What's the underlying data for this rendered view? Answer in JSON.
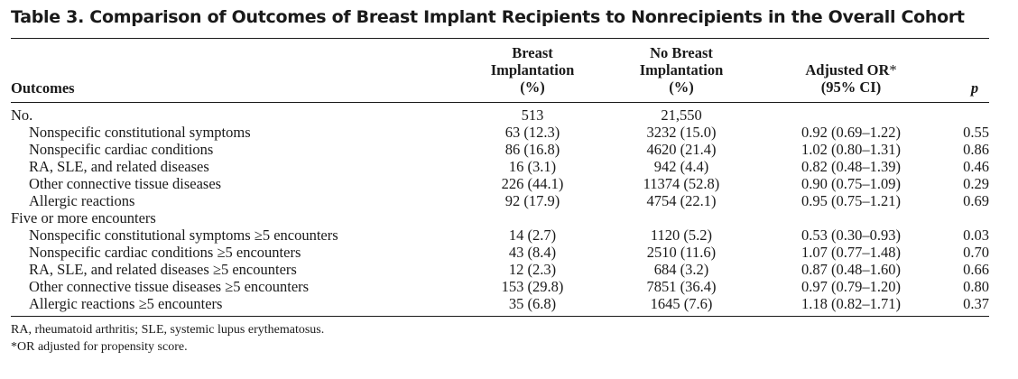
{
  "title": "Table 3.  Comparison of Outcomes of Breast Implant Recipients to Nonrecipients in the Overall Cohort",
  "headers": {
    "outcomes": "Outcomes",
    "breast_implantation": [
      "Breast",
      "Implantation",
      "(%)"
    ],
    "no_breast_implantation": [
      "No Breast",
      "Implantation",
      "(%)"
    ],
    "adjusted_or": [
      "Adjusted OR",
      "*",
      "(95% CI)"
    ],
    "p": "p"
  },
  "rows": [
    {
      "label": "No.",
      "bi": "513",
      "nbi": "21,550",
      "or": "",
      "p": ""
    },
    {
      "label": "Nonspecific constitutional symptoms",
      "bi": "63 (12.3)",
      "nbi": "3232 (15.0)",
      "or": "0.92 (0.69–1.22)",
      "p": "0.55"
    },
    {
      "label": "Nonspecific cardiac conditions",
      "bi": "86 (16.8)",
      "nbi": "4620 (21.4)",
      "or": "1.02 (0.80–1.31)",
      "p": "0.86"
    },
    {
      "label": "RA, SLE, and related diseases",
      "bi": "16 (3.1)",
      "nbi": "942 (4.4)",
      "or": "0.82 (0.48–1.39)",
      "p": "0.46"
    },
    {
      "label": "Other connective tissue diseases",
      "bi": "226 (44.1)",
      "nbi": "11374 (52.8)",
      "or": "0.90 (0.75–1.09)",
      "p": "0.29"
    },
    {
      "label": "Allergic reactions",
      "bi": "92 (17.9)",
      "nbi": "4754 (22.1)",
      "or": "0.95 (0.75–1.21)",
      "p": "0.69"
    },
    {
      "label": "Five or more encounters",
      "bi": "",
      "nbi": "",
      "or": "",
      "p": ""
    },
    {
      "label": "Nonspecific constitutional symptoms ≥5 encounters",
      "bi": "14 (2.7)",
      "nbi": "1120 (5.2)",
      "or": "0.53 (0.30–0.93)",
      "p": "0.03"
    },
    {
      "label": "Nonspecific cardiac conditions ≥5 encounters",
      "bi": "43 (8.4)",
      "nbi": "2510 (11.6)",
      "or": "1.07 (0.77–1.48)",
      "p": "0.70"
    },
    {
      "label": "RA, SLE, and related diseases ≥5 encounters",
      "bi": "12 (2.3)",
      "nbi": "684 (3.2)",
      "or": "0.87 (0.48–1.60)",
      "p": "0.66"
    },
    {
      "label": "Other connective tissue diseases ≥5 encounters",
      "bi": "153 (29.8)",
      "nbi": "7851 (36.4)",
      "or": "0.97 (0.79–1.20)",
      "p": "0.80"
    },
    {
      "label": "Allergic reactions ≥5 encounters",
      "bi": "35 (6.8)",
      "nbi": "1645 (7.6)",
      "or": "1.18 (0.82–1.71)",
      "p": "0.37"
    }
  ],
  "footnotes": [
    "RA, rheumatoid arthritis; SLE, systemic lupus erythematosus.",
    "*OR adjusted for propensity score."
  ]
}
